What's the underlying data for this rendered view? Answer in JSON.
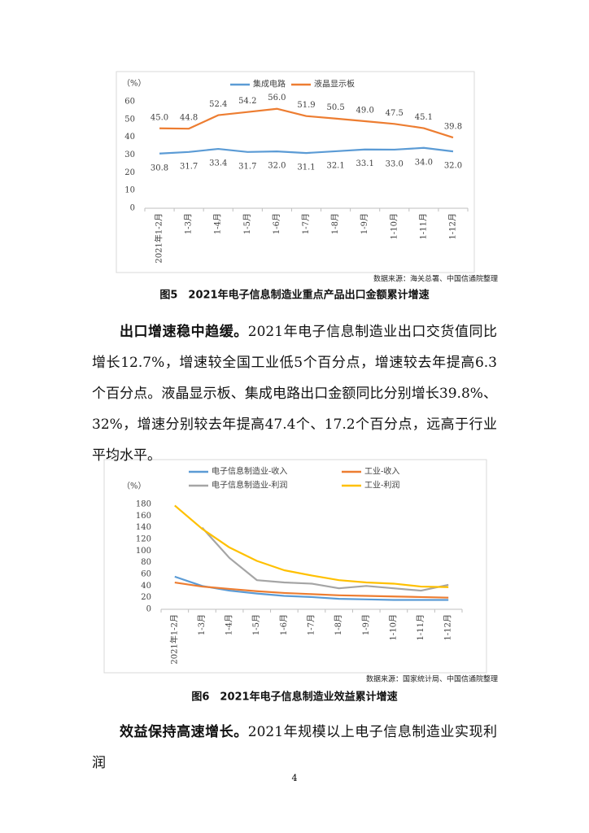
{
  "chart_data": [
    {
      "type": "line",
      "y_label": "（%）",
      "categories": [
        "2021年1-2月",
        "1-3月",
        "1-4月",
        "1-5月",
        "1-6月",
        "1-7月",
        "1-8月",
        "1-9月",
        "1-10月",
        "1-11月",
        "1-12月"
      ],
      "series": [
        {
          "name": "集成电路",
          "color": "#5b9bd5",
          "values": [
            30.8,
            31.7,
            33.4,
            31.7,
            32.0,
            31.1,
            32.1,
            33.1,
            33.0,
            34.0,
            32.0
          ],
          "value_labels": [
            "30.8",
            "31.7",
            "33.4",
            "31.7",
            "32.0",
            "31.1",
            "32.1",
            "33.1",
            "33.0",
            "34.0",
            "32.0"
          ]
        },
        {
          "name": "液晶显示板",
          "color": "#ed7d31",
          "values": [
            45.0,
            44.8,
            52.4,
            54.2,
            56.0,
            51.9,
            50.5,
            49.0,
            47.5,
            45.1,
            39.8
          ],
          "value_labels": [
            "45.0",
            "44.8",
            "52.4",
            "54.2",
            "56.0",
            "51.9",
            "50.5",
            "49.0",
            "47.5",
            "45.1",
            "39.8"
          ]
        }
      ],
      "ylim": [
        0,
        60
      ],
      "yticks": [
        0,
        10,
        20,
        30,
        40,
        50,
        60
      ],
      "grid": false,
      "source": "数据来源：海关总署、中国信通院整理",
      "caption": "图5　2021年电子信息制造业重点产品出口金额累计增速"
    },
    {
      "type": "line",
      "y_label": "（%）",
      "categories": [
        "2021年1-2月",
        "1-3月",
        "1-4月",
        "1-5月",
        "1-6月",
        "1-7月",
        "1-8月",
        "1-9月",
        "1-10月",
        "1-11月",
        "1-12月"
      ],
      "series": [
        {
          "name": "电子信息制造业-收入",
          "color": "#5b9bd5",
          "values": [
            56,
            40,
            32,
            27,
            23,
            21,
            18,
            17,
            16,
            16,
            16
          ]
        },
        {
          "name": "工业-收入",
          "color": "#ed7d31",
          "values": [
            46,
            39,
            35,
            31,
            28,
            26,
            24,
            23,
            22,
            21,
            20
          ]
        },
        {
          "name": "电子信息制造业-利润",
          "color": "#a5a5a5",
          "values": [
            null,
            140,
            88,
            50,
            46,
            44,
            36,
            40,
            36,
            32,
            42
          ]
        },
        {
          "name": "工业-利润",
          "color": "#ffc000",
          "values": [
            178,
            138,
            106,
            83,
            67,
            58,
            50,
            46,
            44,
            39,
            38
          ]
        }
      ],
      "ylim": [
        0,
        180
      ],
      "yticks": [
        0,
        20,
        40,
        60,
        80,
        100,
        120,
        140,
        160,
        180
      ],
      "grid": false,
      "source": "数据来源：国家统计局、中国信通院整理",
      "caption": "图6　2021年电子信息制造业效益累计增速"
    }
  ],
  "paragraphs": [
    {
      "lead": "出口增速稳中趋缓。",
      "text": "2021年电子信息制造业出口交货值同比增长12.7%，增速较全国工业低5个百分点，增速较去年提高6.3个百分点。液晶显示板、集成电路出口金额同比分别增长39.8%、32%，增速分别较去年提高47.4个、17.2个百分点，远高于行业平均水平。"
    },
    {
      "lead": "效益保持高速增长。",
      "text": "2021年规模以上电子信息制造业实现利润"
    }
  ],
  "page_number": "4"
}
